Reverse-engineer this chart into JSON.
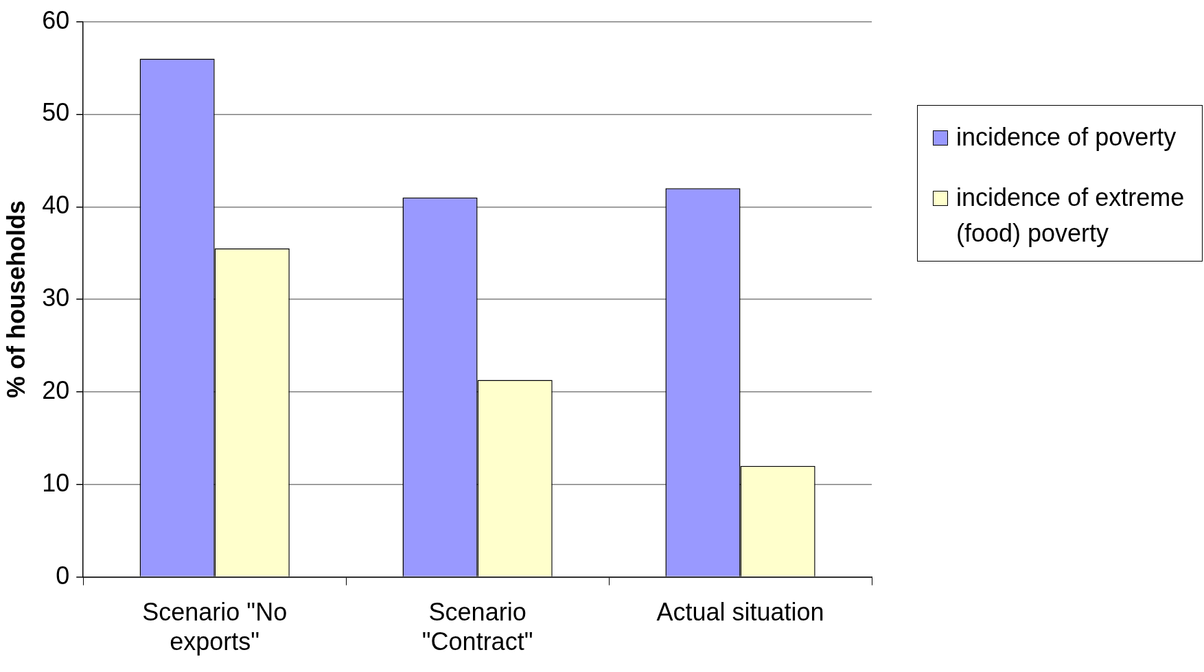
{
  "chart_data": {
    "type": "bar",
    "ylabel": "% of households",
    "categories": [
      "Scenario \"No exports\"",
      "Scenario \"Contract\"",
      "Actual situation"
    ],
    "series": [
      {
        "name": "incidence of poverty",
        "color": "#9999ff",
        "values": [
          56,
          41,
          42
        ]
      },
      {
        "name": "incidence of extreme (food) poverty",
        "color": "#ffffcc",
        "values": [
          35.5,
          21.3,
          12
        ]
      }
    ],
    "ylim": [
      0,
      60
    ],
    "yticks": [
      0,
      10,
      20,
      30,
      40,
      50,
      60
    ],
    "grid": "y",
    "legend": "right"
  }
}
